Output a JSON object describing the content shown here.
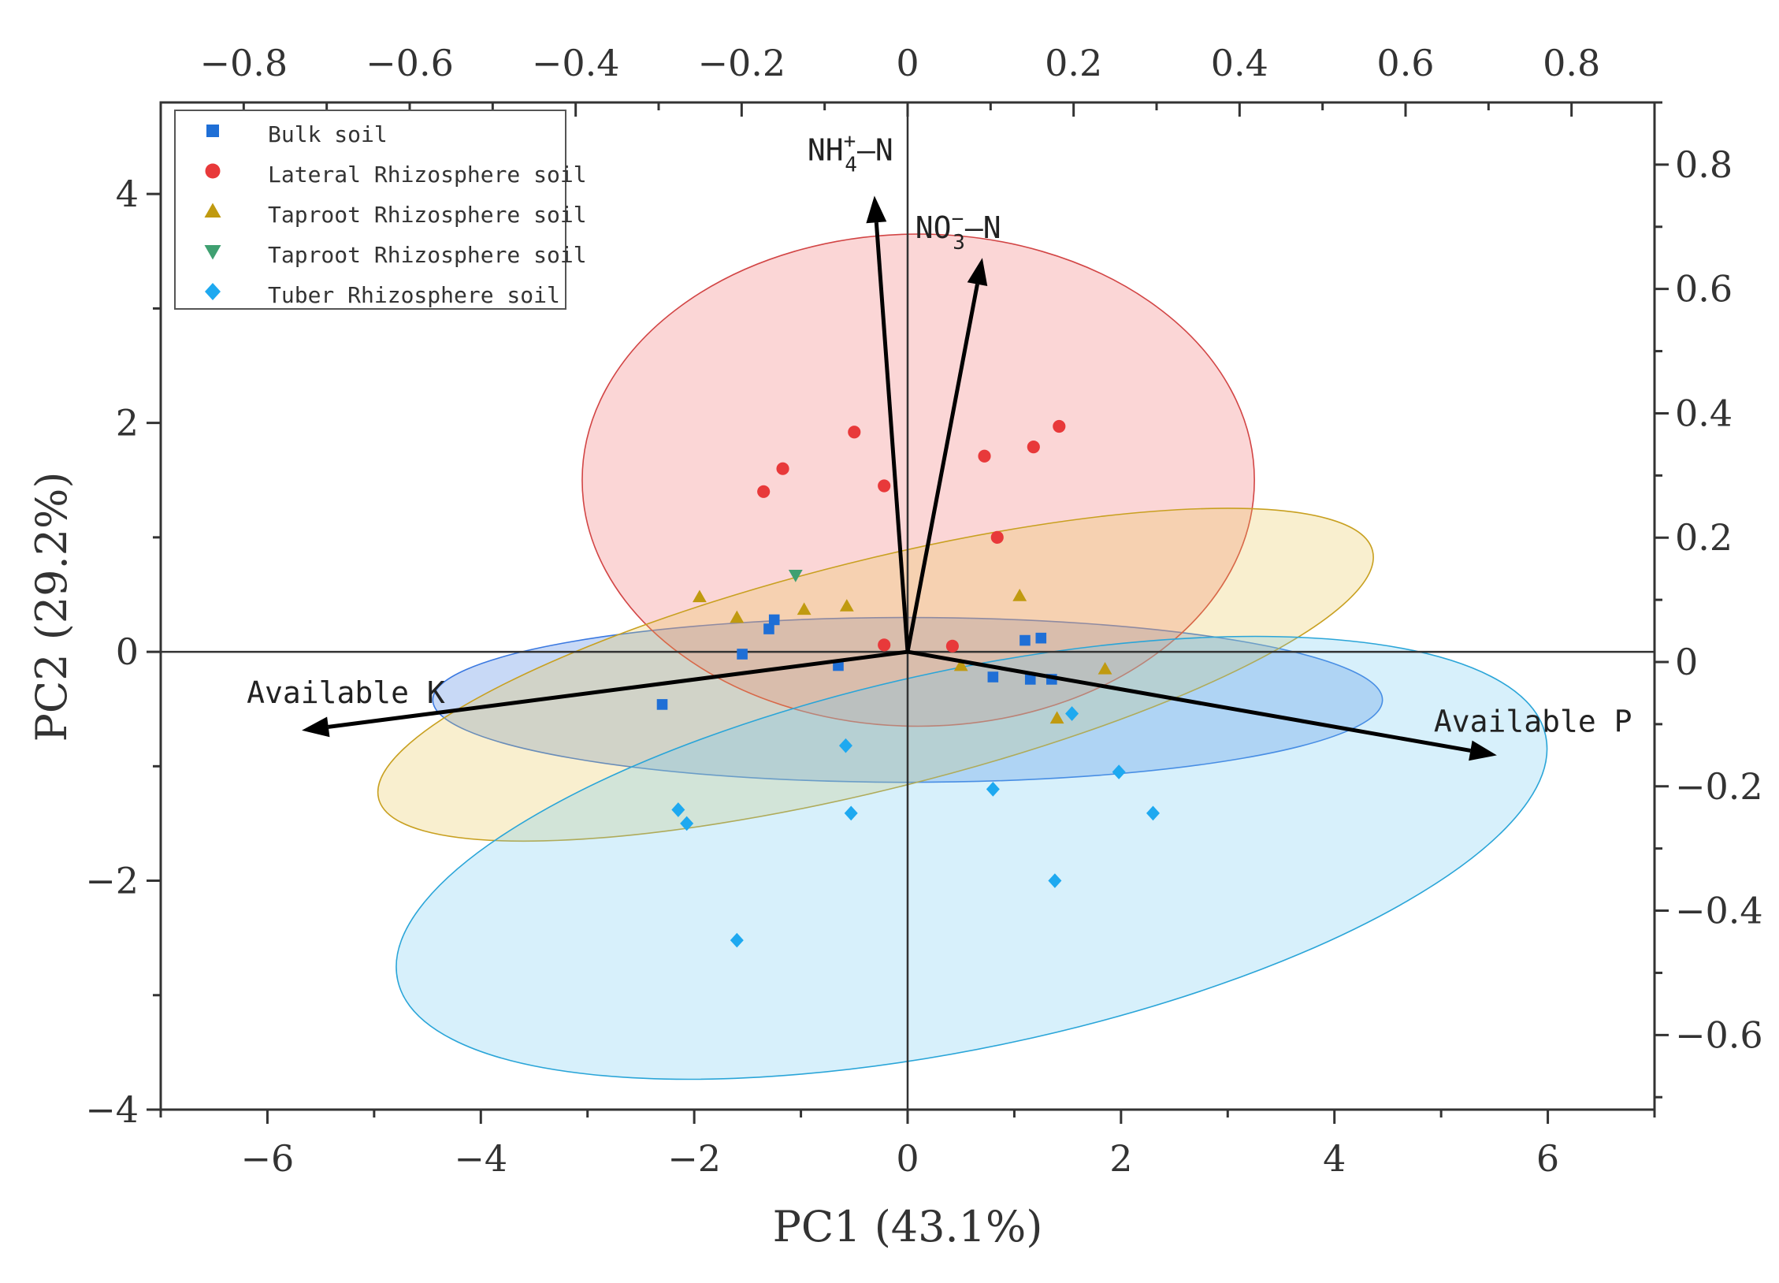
{
  "chart_data": {
    "type": "scatter",
    "subtype": "pca-biplot",
    "xlabel": "PC1 (43.1%)",
    "ylabel": "PC2 (29.2%)",
    "xlim": [
      -7,
      7
    ],
    "ylim": [
      -4,
      4.8
    ],
    "x_ticks": [
      -6,
      -4,
      -2,
      0,
      2,
      4,
      6
    ],
    "y_ticks": [
      -4,
      -2,
      0,
      2,
      4
    ],
    "x_tick_labels": [
      "−6",
      "−4",
      "−2",
      "0",
      "2",
      "4",
      "6"
    ],
    "y_tick_labels": [
      "−4",
      "−2",
      "0",
      "2",
      "4"
    ],
    "loading_xlim": [
      -0.9,
      0.9
    ],
    "loading_ylim": [
      -0.72,
      0.9
    ],
    "top_ticks": [
      -0.8,
      -0.6,
      -0.4,
      -0.2,
      0,
      0.2,
      0.4,
      0.6,
      0.8
    ],
    "top_tick_labels": [
      "−0.8",
      "−0.6",
      "−0.4",
      "−0.2",
      "0",
      "0.2",
      "0.4",
      "0.6",
      "0.8"
    ],
    "right_ticks": [
      -0.6,
      -0.4,
      -0.2,
      0,
      0.2,
      0.4,
      0.6,
      0.8
    ],
    "right_tick_labels": [
      "−0.6",
      "−0.4",
      "−0.2",
      "0",
      "0.2",
      "0.4",
      "0.6",
      "0.8"
    ],
    "legend_position": "top-left",
    "series": [
      {
        "name": "Bulk soil",
        "marker": "square",
        "color": "#1f6fd6",
        "points": [
          [
            -2.3,
            -0.46
          ],
          [
            -1.55,
            -0.02
          ],
          [
            -1.25,
            0.28
          ],
          [
            -1.3,
            0.2
          ],
          [
            -0.65,
            -0.12
          ],
          [
            0.8,
            -0.22
          ],
          [
            1.1,
            0.1
          ],
          [
            1.25,
            0.12
          ],
          [
            1.15,
            -0.24
          ],
          [
            1.35,
            -0.24
          ]
        ],
        "ellipse": {
          "cx": 0,
          "cy": -0.42,
          "rx": 4.45,
          "ry": 0.72,
          "angle_deg": 0,
          "fill": "#3a78e0",
          "stroke": "#3a78e0"
        }
      },
      {
        "name": "Lateral Rhizosphere soil",
        "marker": "circle",
        "color": "#e8393a",
        "points": [
          [
            -1.35,
            1.4
          ],
          [
            -1.17,
            1.6
          ],
          [
            -0.5,
            1.92
          ],
          [
            -0.22,
            1.45
          ],
          [
            0.72,
            1.71
          ],
          [
            1.18,
            1.79
          ],
          [
            1.42,
            1.97
          ],
          [
            0.84,
            1.0
          ],
          [
            -0.22,
            0.06
          ],
          [
            0.42,
            0.05
          ]
        ],
        "ellipse": {
          "cx": 0.1,
          "cy": 1.5,
          "rx": 3.15,
          "ry": 2.15,
          "angle_deg": 0,
          "fill": "#f26b6b",
          "stroke": "#d24545"
        }
      },
      {
        "name": "Taproot Rhizosphere soil",
        "marker": "triangle-up",
        "color": "#c09a10",
        "points": [
          [
            -1.95,
            0.48
          ],
          [
            -1.6,
            0.3
          ],
          [
            -0.97,
            0.37
          ],
          [
            -0.57,
            0.4
          ],
          [
            1.05,
            0.49
          ],
          [
            0.5,
            -0.12
          ],
          [
            1.4,
            -0.58
          ],
          [
            1.85,
            -0.15
          ]
        ],
        "ellipse": {
          "cx": -0.3,
          "cy": -0.2,
          "rx": 4.8,
          "ry": 1.0,
          "angle_deg": 14,
          "fill": "#e8c453",
          "stroke": "#c8a020"
        }
      },
      {
        "name": "Taproot Rhizosphere soil",
        "marker": "triangle-down",
        "color": "#3fa071",
        "points": [
          [
            -1.05,
            0.67
          ]
        ],
        "ellipse": null
      },
      {
        "name": "Tuber Rhizosphere soil",
        "marker": "diamond",
        "color": "#1ea9f0",
        "points": [
          [
            -2.15,
            -1.38
          ],
          [
            -2.07,
            -1.5
          ],
          [
            -1.6,
            -2.52
          ],
          [
            -0.58,
            -0.82
          ],
          [
            -0.53,
            -1.41
          ],
          [
            0.8,
            -1.2
          ],
          [
            1.38,
            -2.0
          ],
          [
            1.54,
            -0.54
          ],
          [
            1.98,
            -1.05
          ],
          [
            2.3,
            -1.41
          ]
        ],
        "ellipse": {
          "cx": 0.6,
          "cy": -1.8,
          "rx": 5.5,
          "ry": 1.65,
          "angle_deg": 12,
          "fill": "#6ec9f0",
          "stroke": "#2aa5d8"
        }
      }
    ],
    "vectors": [
      {
        "name": "NH4+-N",
        "label_base": "NH",
        "label_sub": "4",
        "label_sup": "+",
        "label_tail": "–N",
        "x": -0.04,
        "y": 0.75
      },
      {
        "name": "NO3−-N",
        "label_base": "NO",
        "label_sub": "3",
        "label_sup": "−",
        "label_tail": "–N",
        "x": 0.09,
        "y": 0.65
      },
      {
        "name": "Available K",
        "label_base": "Available K",
        "x": -0.73,
        "y": -0.11
      },
      {
        "name": "Available P",
        "label_base": "Available P",
        "x": 0.71,
        "y": -0.15
      }
    ]
  }
}
